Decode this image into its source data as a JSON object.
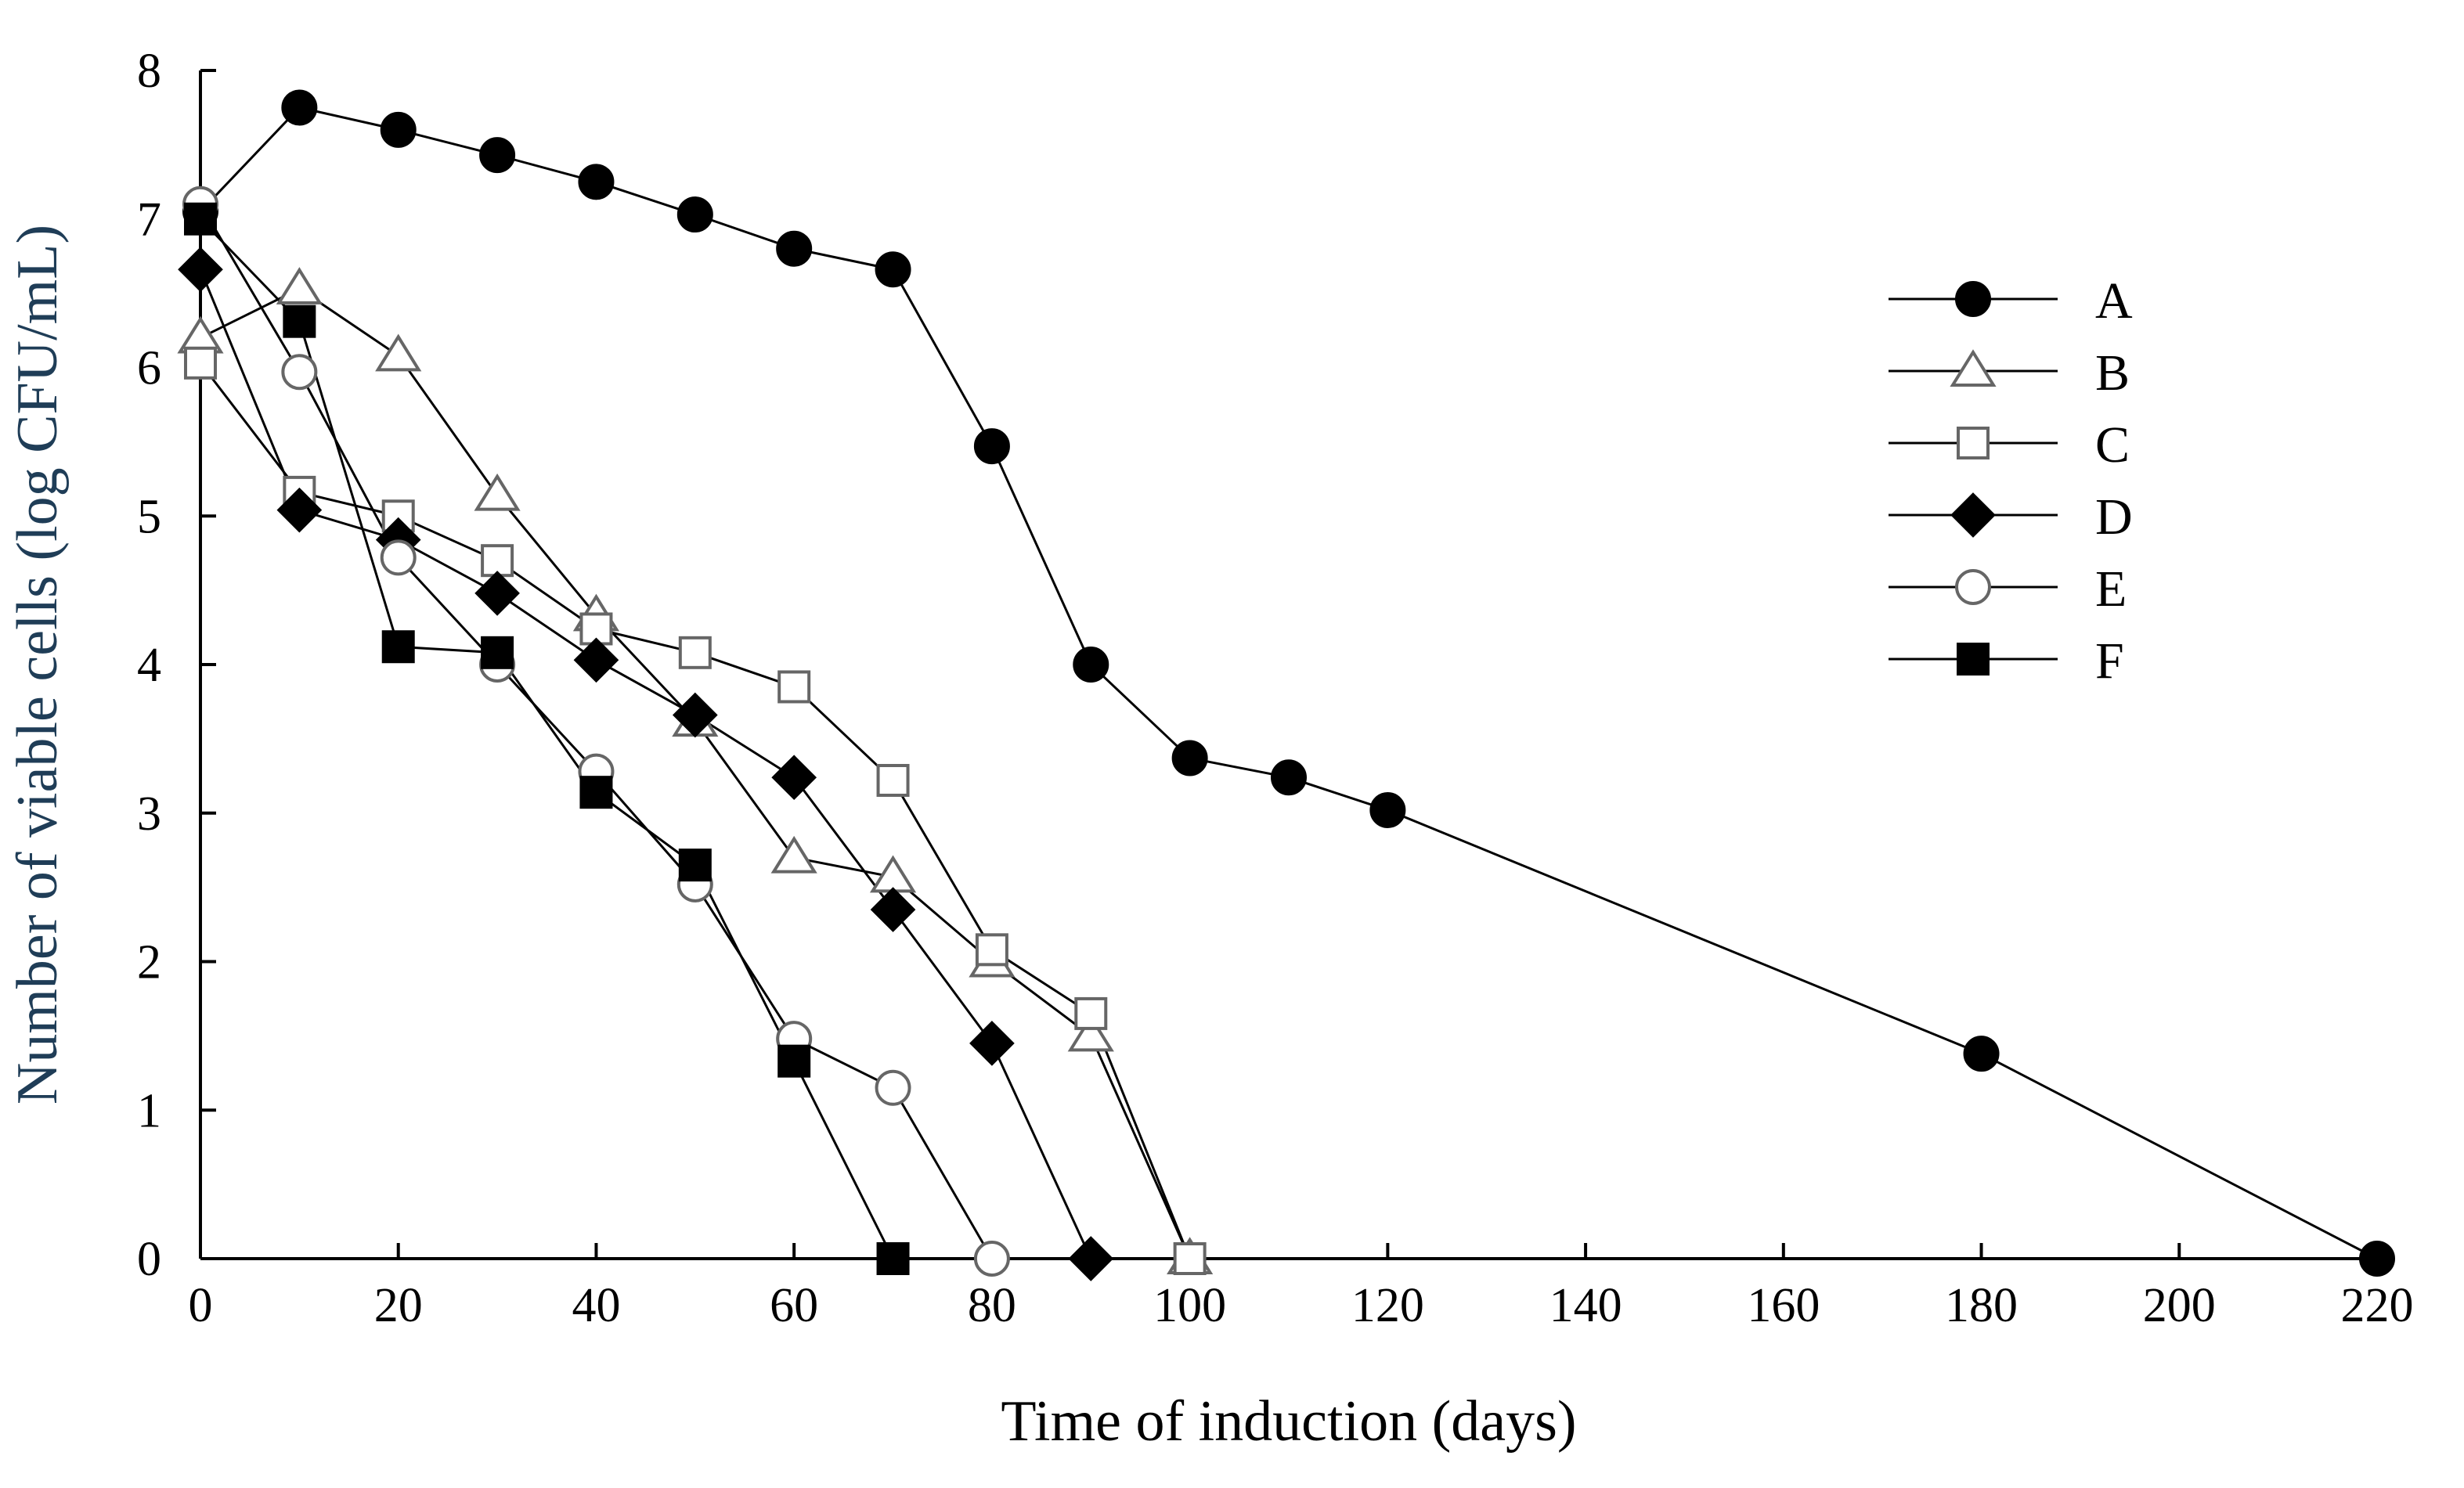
{
  "colors": {
    "axis": "#000000",
    "line": "#000000",
    "ylabel": "#1f3d57",
    "xlabel": "#000000",
    "marker_filled": "#000000",
    "marker_open_fill": "#ffffff",
    "marker_open_stroke": "#666666"
  },
  "chart_data": {
    "type": "line",
    "title": "",
    "xlabel": "Time of induction (days)",
    "ylabel": "Number of viable cells (log CFU/mL)",
    "xlim": [
      0,
      220
    ],
    "ylim": [
      0,
      8
    ],
    "xticks": [
      0,
      20,
      40,
      60,
      80,
      100,
      120,
      140,
      160,
      180,
      200,
      220
    ],
    "yticks": [
      0,
      1,
      2,
      3,
      4,
      5,
      6,
      7,
      8
    ],
    "grid": false,
    "legend_position": "right",
    "series": [
      {
        "name": "A",
        "marker": "circle-filled",
        "points": [
          [
            0,
            7.05
          ],
          [
            10,
            7.75
          ],
          [
            20,
            7.6
          ],
          [
            30,
            7.43
          ],
          [
            40,
            7.25
          ],
          [
            50,
            7.03
          ],
          [
            60,
            6.8
          ],
          [
            70,
            6.66
          ],
          [
            80,
            5.47
          ],
          [
            90,
            4.0
          ],
          [
            100,
            3.37
          ],
          [
            110,
            3.24
          ],
          [
            120,
            3.02
          ],
          [
            180,
            1.38
          ],
          [
            220,
            0.0
          ]
        ]
      },
      {
        "name": "B",
        "marker": "triangle-open",
        "points": [
          [
            0,
            6.2
          ],
          [
            10,
            6.53
          ],
          [
            20,
            6.08
          ],
          [
            30,
            5.14
          ],
          [
            40,
            4.33
          ],
          [
            50,
            3.62
          ],
          [
            60,
            2.7
          ],
          [
            70,
            2.57
          ],
          [
            80,
            2.0
          ],
          [
            90,
            1.5
          ],
          [
            100,
            0.0
          ]
        ]
      },
      {
        "name": "C",
        "marker": "square-open",
        "points": [
          [
            0,
            6.03
          ],
          [
            10,
            5.16
          ],
          [
            20,
            5.0
          ],
          [
            30,
            4.7
          ],
          [
            40,
            4.24
          ],
          [
            50,
            4.08
          ],
          [
            60,
            3.85
          ],
          [
            70,
            3.22
          ],
          [
            80,
            2.08
          ],
          [
            90,
            1.65
          ],
          [
            100,
            0.0
          ]
        ]
      },
      {
        "name": "D",
        "marker": "diamond-filled",
        "points": [
          [
            0,
            6.66
          ],
          [
            10,
            5.04
          ],
          [
            20,
            4.84
          ],
          [
            30,
            4.48
          ],
          [
            40,
            4.03
          ],
          [
            50,
            3.66
          ],
          [
            60,
            3.24
          ],
          [
            70,
            2.35
          ],
          [
            80,
            1.45
          ],
          [
            90,
            0.0
          ]
        ]
      },
      {
        "name": "E",
        "marker": "circle-open",
        "points": [
          [
            0,
            7.1
          ],
          [
            10,
            5.97
          ],
          [
            20,
            4.72
          ],
          [
            30,
            4.0
          ],
          [
            40,
            3.28
          ],
          [
            50,
            2.52
          ],
          [
            60,
            1.48
          ],
          [
            70,
            1.15
          ],
          [
            80,
            0.0
          ]
        ]
      },
      {
        "name": "F",
        "marker": "square-filled",
        "points": [
          [
            0,
            7.0
          ],
          [
            10,
            6.31
          ],
          [
            20,
            4.12
          ],
          [
            30,
            4.08
          ],
          [
            40,
            3.14
          ],
          [
            50,
            2.65
          ],
          [
            60,
            1.33
          ],
          [
            70,
            0.0
          ]
        ]
      }
    ]
  }
}
